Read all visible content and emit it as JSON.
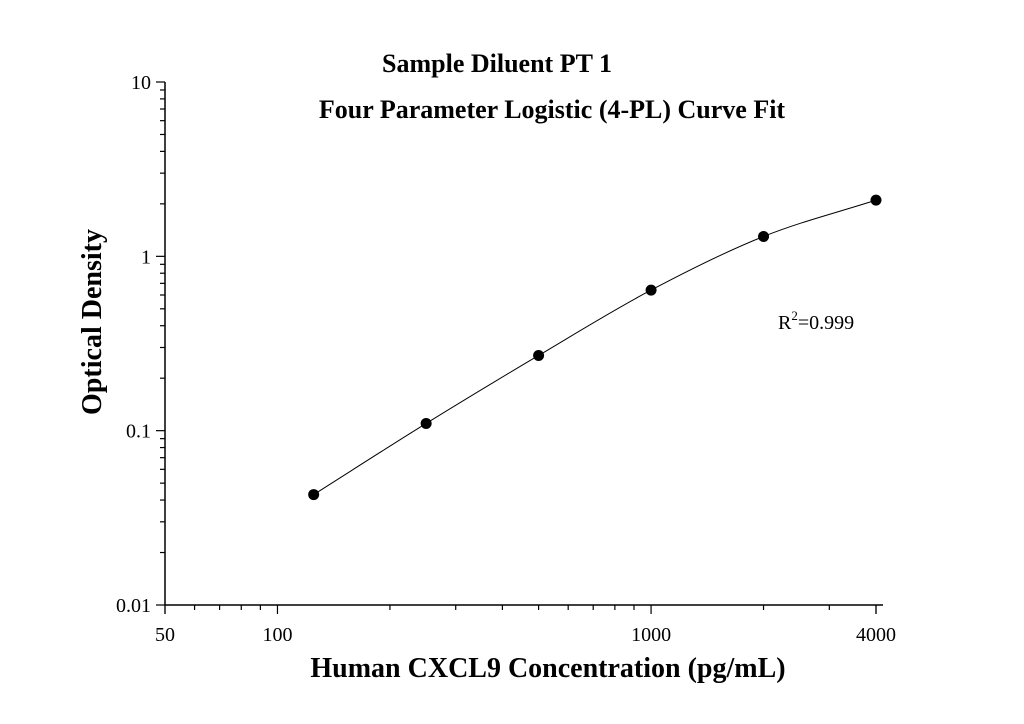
{
  "chart_data": {
    "type": "scatter",
    "title": "Sample Diluent PT 1",
    "subtitle": "Four Parameter Logistic (4-PL) Curve Fit",
    "xlabel": "Human CXCL9 Concentration (pg/mL)",
    "ylabel": "Optical Density",
    "xscale": "log",
    "yscale": "log",
    "xlim": [
      50,
      4000
    ],
    "ylim": [
      0.01,
      10
    ],
    "x_tick_labels": [
      "50",
      "100",
      "1000",
      "4000"
    ],
    "x_tick_values": [
      50,
      100,
      1000,
      4000
    ],
    "y_tick_labels": [
      "0.01",
      "0.1",
      "1",
      "10"
    ],
    "y_tick_values": [
      0.01,
      0.1,
      1,
      10
    ],
    "grid": false,
    "series": [
      {
        "x": [
          125,
          250,
          500,
          1000,
          2000,
          4000
        ],
        "y": [
          0.043,
          0.11,
          0.27,
          0.64,
          1.3,
          2.1
        ]
      }
    ],
    "annotation": {
      "base": "R",
      "superscript": "2",
      "value": "=0.999"
    }
  }
}
